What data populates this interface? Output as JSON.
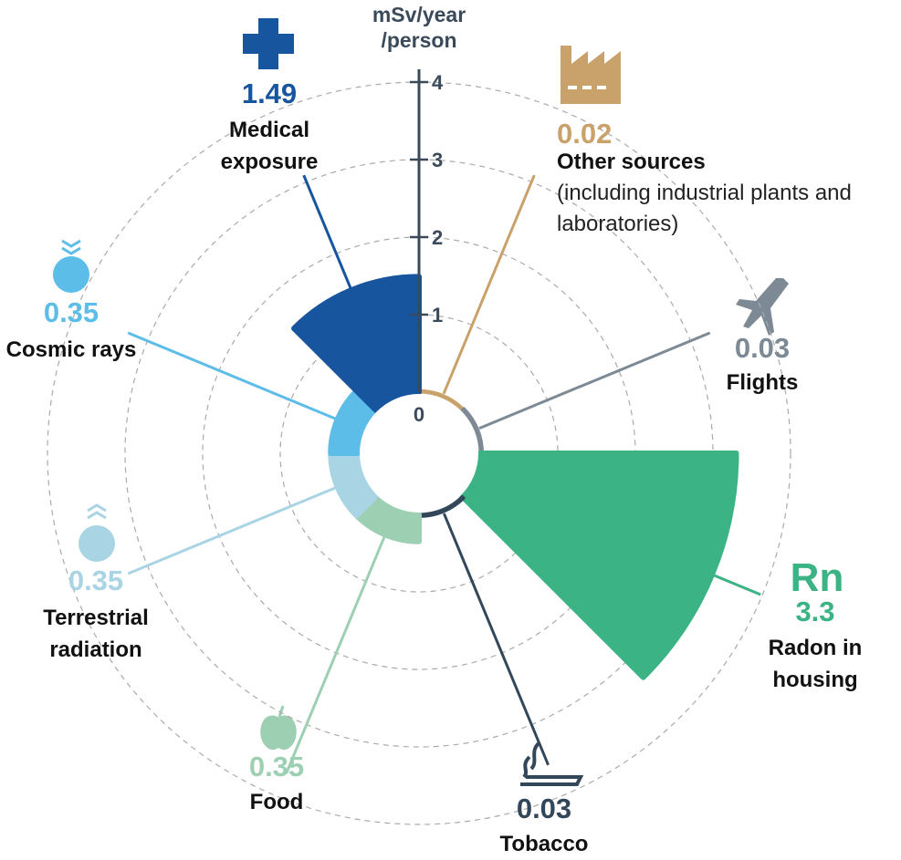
{
  "chart_data": {
    "type": "polar_bar",
    "axis_label_lines": [
      "mSv/year",
      "/person"
    ],
    "categories": [
      "Other sources",
      "Flights",
      "Radon in housing",
      "Tobacco",
      "Food",
      "Terrestrial radiation",
      "Cosmic rays",
      "Medical exposure"
    ],
    "note": "(including industrial plants and laboratories)",
    "symbol": "Rn",
    "values": [
      0.02,
      0.03,
      3.3,
      0.03,
      0.35,
      0.35,
      0.35,
      1.49
    ],
    "colors": [
      "#c9a26b",
      "#7d8a96",
      "#3bb385",
      "#33475a",
      "#9dcfb3",
      "#a9d4e4",
      "#5bbde8",
      "#17559f"
    ],
    "ylim": [
      0,
      4
    ],
    "yticks": [
      0,
      1,
      2,
      3,
      4
    ],
    "grid": true
  }
}
